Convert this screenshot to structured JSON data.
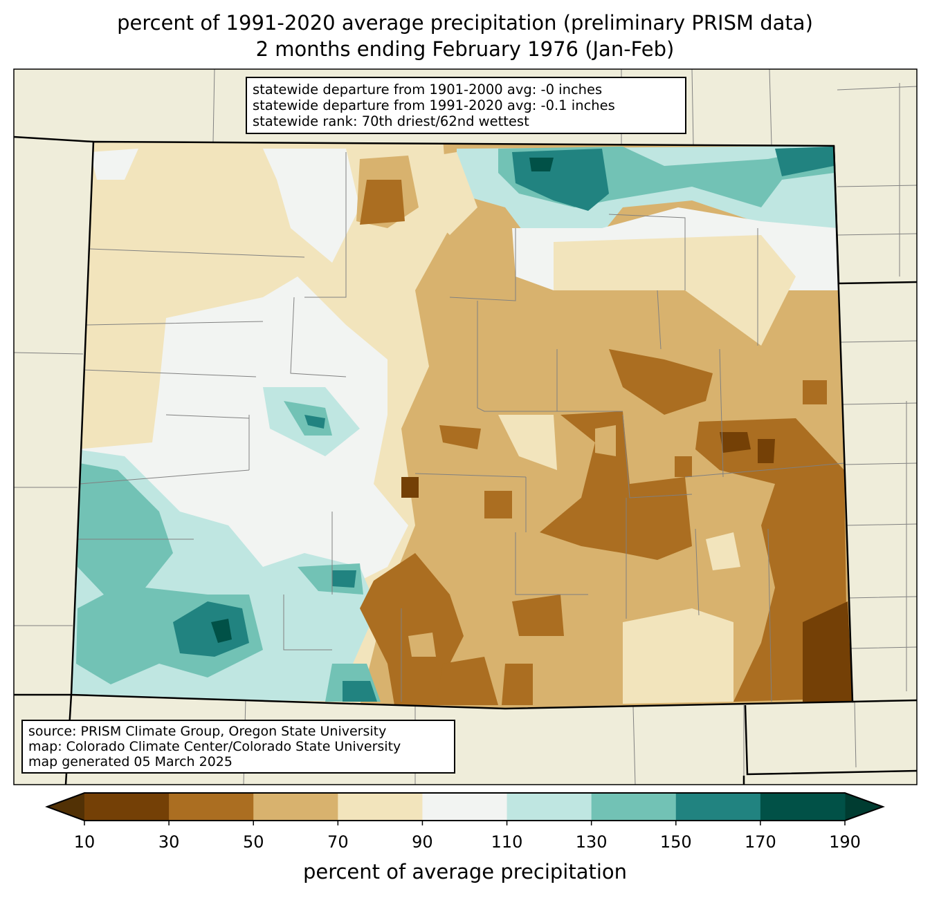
{
  "title": {
    "line1": "percent of 1991-2020 average precipitation (preliminary PRISM data)",
    "line2": "2 months ending February 1976 (Jan-Feb)"
  },
  "stats_box": {
    "line1": "statewide departure from 1901-2000 avg: -0 inches",
    "line2": "statewide departure from 1991-2020 avg: -0.1 inches",
    "line3": "statewide rank: 70th driest/62nd wettest"
  },
  "source_box": {
    "line1": "source: PRISM Climate Group, Oregon State University",
    "line2": "map: Colorado Climate Center/Colorado State University",
    "line3": "map generated 05 March 2025"
  },
  "colorbar": {
    "label": "percent of average precipitation",
    "ticks": [
      "10",
      "30",
      "50",
      "70",
      "90",
      "110",
      "130",
      "150",
      "170",
      "190"
    ],
    "colors": [
      "#744006",
      "#ab6e21",
      "#d8b26e",
      "#f2e4bc",
      "#f2f4f2",
      "#bfe6e1",
      "#72c2b5",
      "#218380",
      "#015147"
    ],
    "under_color": "#523105",
    "over_color": "#003c31"
  },
  "map_colors": {
    "background": "#efedda",
    "county_lines": "#808080"
  }
}
